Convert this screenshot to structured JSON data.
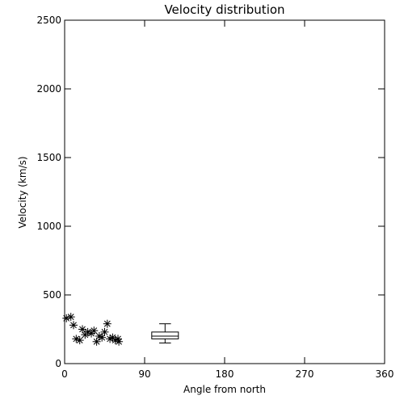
{
  "chart_data": {
    "type": "scatter",
    "title": "Velocity distribution",
    "xlabel": "Angle from north",
    "ylabel": "Velocity (km/s)",
    "xlim": [
      0,
      360
    ],
    "ylim": [
      0,
      2500
    ],
    "xticks": [
      "0",
      "90",
      "180",
      "270",
      "360"
    ],
    "yticks": [
      "0",
      "500",
      "1000",
      "1500",
      "2000",
      "2500"
    ],
    "grid": false,
    "marker": "asterisk",
    "points": [
      {
        "x": 2,
        "y": 330
      },
      {
        "x": 7,
        "y": 340
      },
      {
        "x": 10,
        "y": 280
      },
      {
        "x": 13,
        "y": 180
      },
      {
        "x": 17,
        "y": 170
      },
      {
        "x": 20,
        "y": 250
      },
      {
        "x": 23,
        "y": 210
      },
      {
        "x": 26,
        "y": 230
      },
      {
        "x": 30,
        "y": 220
      },
      {
        "x": 33,
        "y": 240
      },
      {
        "x": 36,
        "y": 160
      },
      {
        "x": 39,
        "y": 200
      },
      {
        "x": 42,
        "y": 190
      },
      {
        "x": 45,
        "y": 230
      },
      {
        "x": 48,
        "y": 290
      },
      {
        "x": 51,
        "y": 180
      },
      {
        "x": 54,
        "y": 190
      },
      {
        "x": 57,
        "y": 170
      },
      {
        "x": 60,
        "y": 180
      },
      {
        "x": 61,
        "y": 160
      }
    ],
    "boxplot": {
      "x_center": 113,
      "x_width": 30,
      "min": 150,
      "q1": 180,
      "median": 200,
      "q3": 230,
      "max": 290
    }
  }
}
